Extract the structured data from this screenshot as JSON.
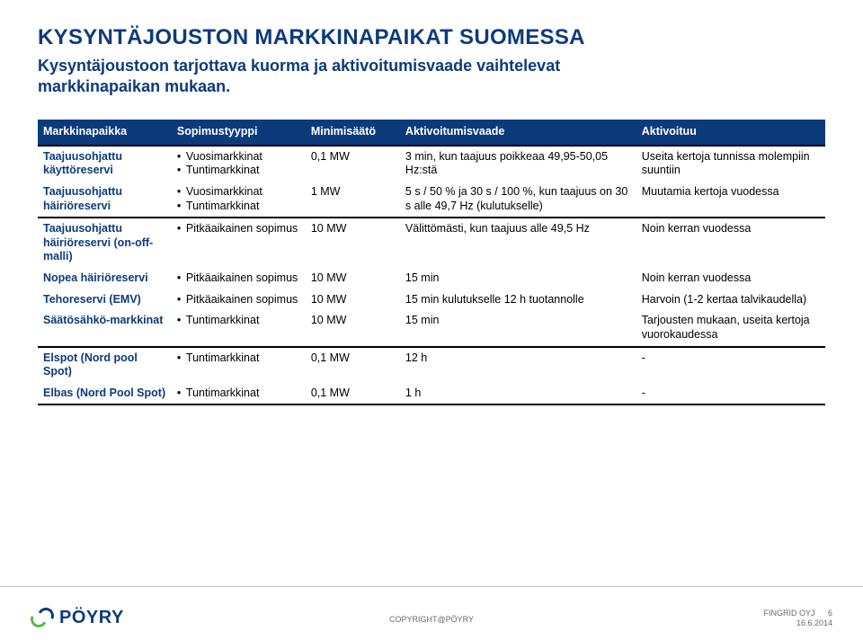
{
  "colors": {
    "brand_blue": "#0c3b7c",
    "brand_green": "#57b948",
    "header_bg": "#0c3b7c",
    "header_fg": "#ffffff",
    "rule": "#000000",
    "footer_rule": "#c8c8c8",
    "footer_text": "#6a6a6a",
    "body_text": "#000000"
  },
  "typography": {
    "title_fontsize_pt": 18,
    "subtitle_fontsize_pt": 14,
    "table_fontsize_pt": 9,
    "footer_fontsize_pt": 7
  },
  "title": "KYSYNTÄJOUSTON MARKKINAPAIKAT SUOMESSA",
  "subtitle": "Kysyntäjoustoon tarjottava kuorma ja aktivoitumisvaade vaihtelevat markkinapaikan mukaan.",
  "table": {
    "columns": [
      "Markkinapaikka",
      "Sopimustyyppi",
      "Minimisäätö",
      "Aktivoitumisvaade",
      "Aktivoituu"
    ],
    "column_widths_pct": [
      17,
      17,
      12,
      30,
      24
    ],
    "groups": [
      {
        "rows": [
          {
            "name": "Taajuusohjattu käyttöreservi",
            "contract": [
              "Vuosimarkkinat",
              "Tuntimarkkinat"
            ],
            "min": "0,1 MW",
            "trigger": "3 min, kun taajuus poikkeaa 49,95-50,05 Hz:stä",
            "act": "Useita kertoja tunnissa molempiin suuntiin"
          },
          {
            "name": "Taajuusohjattu häiriöreservi",
            "contract": [
              "Vuosimarkkinat",
              "Tuntimarkkinat"
            ],
            "min": "1 MW",
            "trigger": "5 s / 50 % ja 30 s / 100 %, kun taajuus on 30 s alle 49,7 Hz (kulutukselle)",
            "act": "Muutamia kertoja vuodessa"
          }
        ]
      },
      {
        "rows": [
          {
            "name": "Taajuusohjattu häiriöreservi (on-off-malli)",
            "contract": [
              "Pitkäaikainen sopimus"
            ],
            "min": "10 MW",
            "trigger": "Välittömästi, kun taajuus alle 49,5 Hz",
            "act": "Noin kerran vuodessa"
          },
          {
            "name": "Nopea häiriöreservi",
            "contract": [
              "Pitkäaikainen sopimus"
            ],
            "min": "10 MW",
            "trigger": "15 min",
            "act": "Noin kerran vuodessa"
          },
          {
            "name": "Tehoreservi (EMV)",
            "contract": [
              "Pitkäaikainen sopimus"
            ],
            "min": "10 MW",
            "trigger": "15 min kulutukselle 12 h tuotannolle",
            "act": "Harvoin (1-2 kertaa talvikaudella)"
          },
          {
            "name": "Säätösähkö-markkinat",
            "contract": [
              "Tuntimarkkinat"
            ],
            "min": "10 MW",
            "trigger": "15 min",
            "act": "Tarjousten mukaan, useita kertoja vuorokaudessa"
          }
        ]
      },
      {
        "rows": [
          {
            "name": "Elspot (Nord pool Spot)",
            "contract": [
              "Tuntimarkkinat"
            ],
            "min": "0,1 MW",
            "trigger": "12 h",
            "act": "-"
          },
          {
            "name": "Elbas (Nord Pool Spot)",
            "contract": [
              "Tuntimarkkinat"
            ],
            "min": "0,1 MW",
            "trigger": "1 h",
            "act": "-"
          }
        ]
      }
    ]
  },
  "footer": {
    "logo_text": "PÖYRY",
    "copyright": "COPYRIGHT@PÖYRY",
    "right_line1": "FINGRID OYJ",
    "right_line2": "16.6.2014",
    "page_number": "6"
  }
}
